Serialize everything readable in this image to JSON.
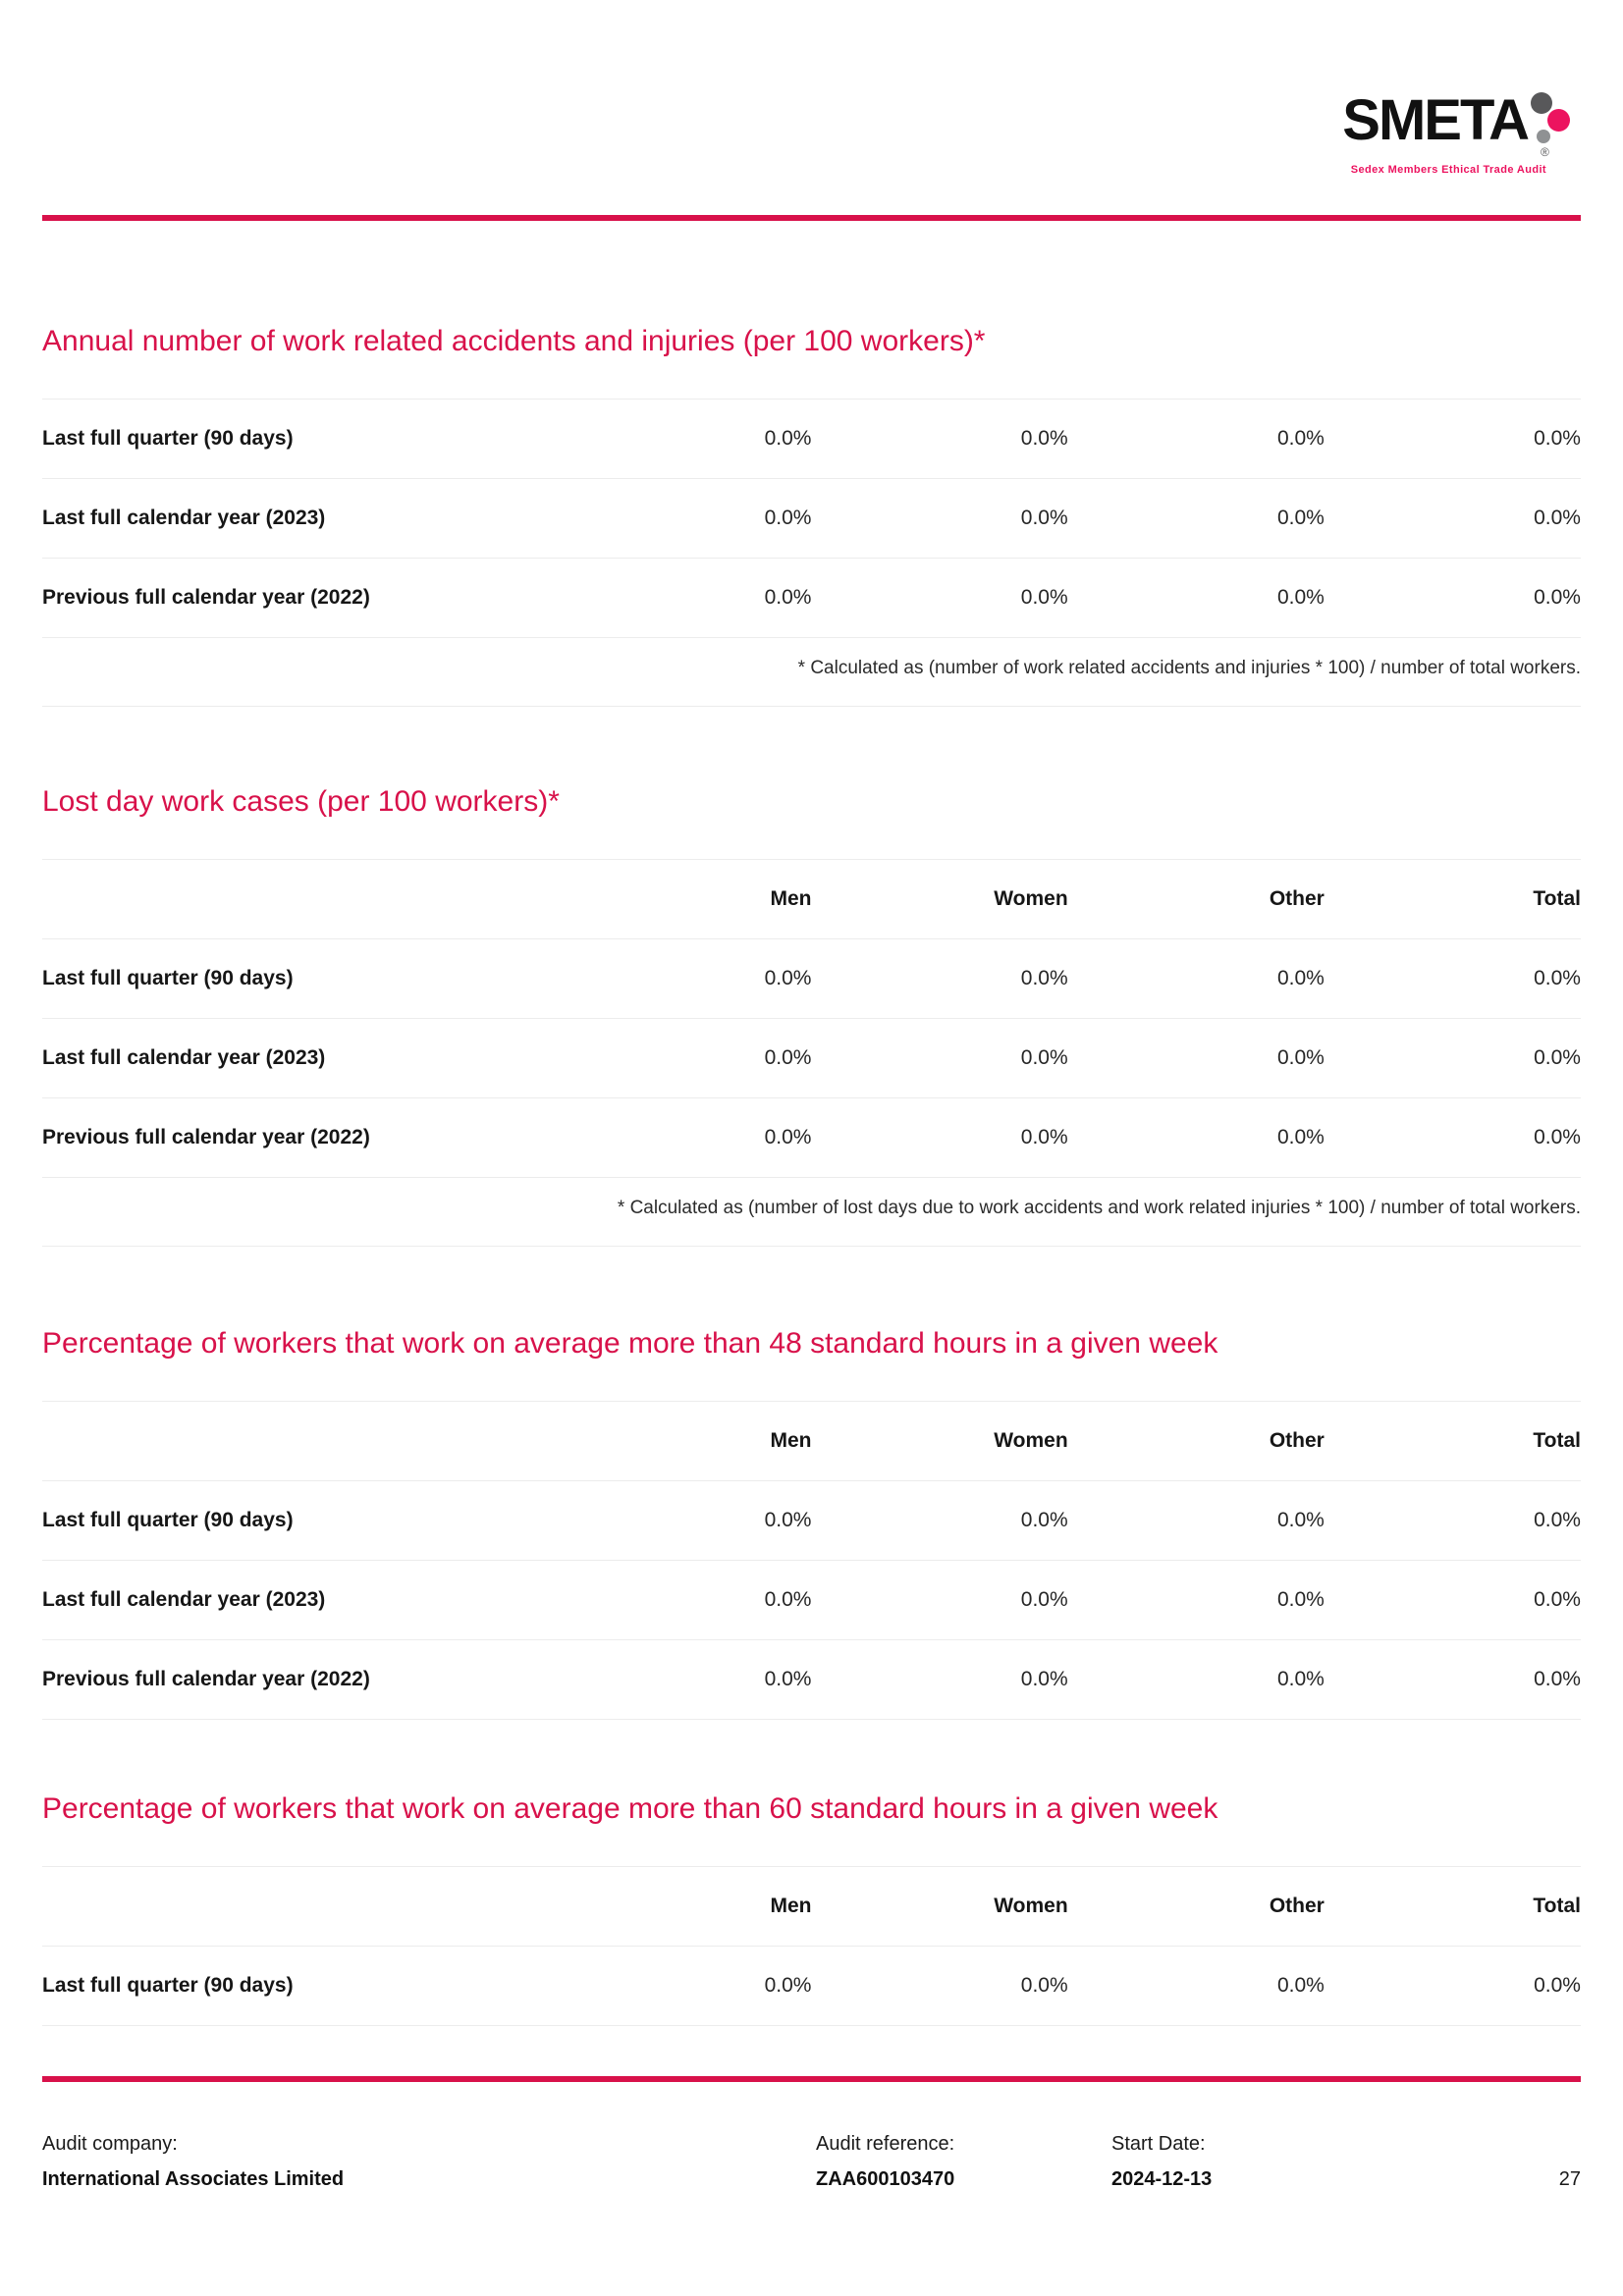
{
  "page": {
    "number": "27"
  },
  "logo": {
    "brand": "SMETA",
    "registered": "®",
    "tagline": "Sedex Members Ethical Trade Audit"
  },
  "colors": {
    "accent_crimson": "#d8114a",
    "logo_pink": "#ec135f",
    "logo_gray_dark": "#58585a",
    "logo_gray_mid": "#8f9193",
    "row_divider": "#ececec"
  },
  "sections": [
    {
      "title": "Annual number of work related accidents and injuries (per 100 workers)*",
      "rows": [
        {
          "label": "Last full quarter (90 days)",
          "values": [
            "0.0%",
            "0.0%",
            "0.0%",
            "0.0%"
          ]
        },
        {
          "label": "Last full calendar year (2023)",
          "values": [
            "0.0%",
            "0.0%",
            "0.0%",
            "0.0%"
          ]
        },
        {
          "label": "Previous full calendar year (2022)",
          "values": [
            "0.0%",
            "0.0%",
            "0.0%",
            "0.0%"
          ]
        }
      ],
      "footnote": "* Calculated as (number of work related accidents and injuries * 100) / number of total workers."
    },
    {
      "title": "Lost day work cases (per 100 workers)*",
      "columns": [
        "Men",
        "Women",
        "Other",
        "Total"
      ],
      "rows": [
        {
          "label": "Last full quarter (90 days)",
          "values": [
            "0.0%",
            "0.0%",
            "0.0%",
            "0.0%"
          ]
        },
        {
          "label": "Last full calendar year (2023)",
          "values": [
            "0.0%",
            "0.0%",
            "0.0%",
            "0.0%"
          ]
        },
        {
          "label": "Previous full calendar year (2022)",
          "values": [
            "0.0%",
            "0.0%",
            "0.0%",
            "0.0%"
          ]
        }
      ],
      "footnote": "* Calculated as (number of lost days due to work accidents and work related injuries * 100) / number of total workers."
    },
    {
      "title": "Percentage of workers that work on average more than 48 standard hours in a given week",
      "columns": [
        "Men",
        "Women",
        "Other",
        "Total"
      ],
      "rows": [
        {
          "label": "Last full quarter (90 days)",
          "values": [
            "0.0%",
            "0.0%",
            "0.0%",
            "0.0%"
          ]
        },
        {
          "label": "Last full calendar year (2023)",
          "values": [
            "0.0%",
            "0.0%",
            "0.0%",
            "0.0%"
          ]
        },
        {
          "label": "Previous full calendar year (2022)",
          "values": [
            "0.0%",
            "0.0%",
            "0.0%",
            "0.0%"
          ]
        }
      ]
    },
    {
      "title": "Percentage of workers that work on average more than 60 standard hours in a given week",
      "columns": [
        "Men",
        "Women",
        "Other",
        "Total"
      ],
      "rows": [
        {
          "label": "Last full quarter (90 days)",
          "values": [
            "0.0%",
            "0.0%",
            "0.0%",
            "0.0%"
          ]
        }
      ]
    }
  ],
  "footer": {
    "audit_company_label": "Audit company:",
    "audit_company_value": "International Associates Limited",
    "audit_reference_label": "Audit reference:",
    "audit_reference_value": "ZAA600103470",
    "start_date_label": "Start Date:",
    "start_date_value": "2024-12-13"
  }
}
